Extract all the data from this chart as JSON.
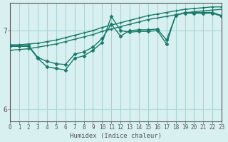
{
  "xlabel": "Humidex (Indice chaleur)",
  "ylabel": "",
  "bg_color": "#d8f0f0",
  "line_color": "#1a7a6a",
  "grid_color": "#aad4d4",
  "axis_color": "#555555",
  "xlim": [
    0,
    23
  ],
  "ylim": [
    5.85,
    7.35
  ],
  "yticks": [
    6,
    7
  ],
  "xticks": [
    0,
    1,
    2,
    3,
    4,
    5,
    6,
    7,
    8,
    9,
    10,
    11,
    12,
    13,
    14,
    15,
    16,
    17,
    18,
    19,
    20,
    21,
    22,
    23
  ],
  "line1_x": [
    0,
    1,
    2,
    3,
    4,
    5,
    6,
    7,
    8,
    9,
    10,
    11,
    12,
    13,
    14,
    15,
    16,
    17,
    18,
    19,
    20,
    21,
    22,
    23
  ],
  "line1_y": [
    6.82,
    6.82,
    6.83,
    6.84,
    6.86,
    6.88,
    6.91,
    6.94,
    6.97,
    7.0,
    7.04,
    7.07,
    7.1,
    7.13,
    7.16,
    7.19,
    7.21,
    7.23,
    7.25,
    7.27,
    7.28,
    7.29,
    7.3,
    7.3
  ],
  "line2_x": [
    0,
    1,
    2,
    3,
    4,
    5,
    6,
    7,
    8,
    9,
    10,
    11,
    12,
    13,
    14,
    15,
    16,
    17,
    18,
    19,
    20,
    21,
    22,
    23
  ],
  "line2_y": [
    6.75,
    6.76,
    6.77,
    6.79,
    6.81,
    6.83,
    6.86,
    6.89,
    6.92,
    6.95,
    6.99,
    7.02,
    7.05,
    7.08,
    7.11,
    7.14,
    7.16,
    7.18,
    7.2,
    7.22,
    7.24,
    7.25,
    7.26,
    7.27
  ],
  "line3_x": [
    0,
    1,
    2,
    3,
    4,
    5,
    6,
    7,
    8,
    9,
    10,
    11,
    12,
    13,
    14,
    15,
    16,
    17,
    18,
    19,
    20,
    21,
    22,
    23
  ],
  "line3_y": [
    6.81,
    6.81,
    6.81,
    6.66,
    6.61,
    6.58,
    6.57,
    6.7,
    6.73,
    6.79,
    6.9,
    7.08,
    6.93,
    7.0,
    7.01,
    7.01,
    7.02,
    6.88,
    7.19,
    7.23,
    7.23,
    7.23,
    7.23,
    7.19
  ],
  "line4_x": [
    0,
    1,
    2,
    3,
    4,
    5,
    6,
    7,
    8,
    9,
    10,
    11,
    12,
    13,
    14,
    15,
    16,
    17,
    18,
    19,
    20,
    21,
    22,
    23
  ],
  "line4_y": [
    6.8,
    6.8,
    6.8,
    6.65,
    6.54,
    6.52,
    6.5,
    6.65,
    6.68,
    6.75,
    6.85,
    7.18,
    7.0,
    6.98,
    6.99,
    6.99,
    7.0,
    6.83,
    7.2,
    7.22,
    7.22,
    7.22,
    7.22,
    7.18
  ]
}
